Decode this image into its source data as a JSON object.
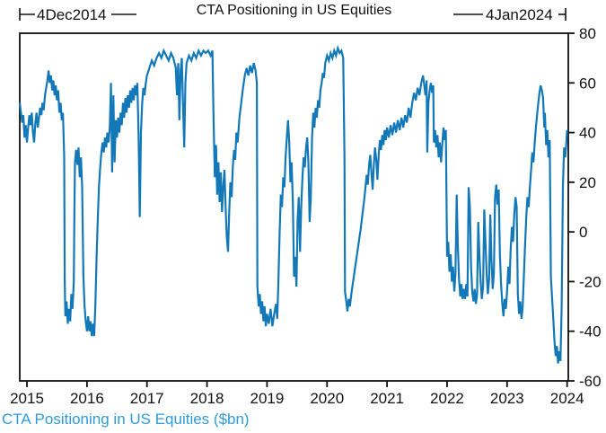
{
  "title": "CTA Positioning in US Equities",
  "annotations": {
    "start_label": "4Dec2014",
    "end_label": "4Jan2024"
  },
  "footer_label": "CTA Positioning in US Equities ($bn)",
  "colors": {
    "line": "#1278b8",
    "footer": "#2e9bdb",
    "axis": "#111111",
    "background": "#ffffff"
  },
  "chart_data": {
    "type": "line",
    "title": "CTA Positioning in US Equities",
    "series_label": "CTA Positioning in US Equities ($bn)",
    "xlabel": "",
    "ylabel": "$bn",
    "y_axis_side": "right",
    "grid": false,
    "xlim": [
      2014.88,
      2024.02
    ],
    "ylim": [
      -60,
      80
    ],
    "x_ticks": [
      2015,
      2016,
      2017,
      2018,
      2019,
      2020,
      2021,
      2022,
      2023,
      2024
    ],
    "y_ticks": [
      80,
      60,
      40,
      20,
      0,
      -20,
      -40,
      -60
    ],
    "range_start": "4Dec2014",
    "range_end": "4Jan2024",
    "points": [
      [
        2014.88,
        52
      ],
      [
        2014.92,
        44
      ],
      [
        2014.94,
        47
      ],
      [
        2014.96,
        38
      ],
      [
        2014.98,
        43
      ],
      [
        2015.0,
        36
      ],
      [
        2015.02,
        42
      ],
      [
        2015.04,
        47
      ],
      [
        2015.06,
        43
      ],
      [
        2015.08,
        48
      ],
      [
        2015.1,
        40
      ],
      [
        2015.12,
        36
      ],
      [
        2015.14,
        44
      ],
      [
        2015.16,
        48
      ],
      [
        2015.18,
        42
      ],
      [
        2015.2,
        46
      ],
      [
        2015.22,
        50
      ],
      [
        2015.24,
        47
      ],
      [
        2015.26,
        52
      ],
      [
        2015.28,
        49
      ],
      [
        2015.3,
        55
      ],
      [
        2015.32,
        58
      ],
      [
        2015.34,
        61
      ],
      [
        2015.36,
        65
      ],
      [
        2015.38,
        60
      ],
      [
        2015.4,
        63
      ],
      [
        2015.42,
        57
      ],
      [
        2015.44,
        61
      ],
      [
        2015.46,
        55
      ],
      [
        2015.48,
        59
      ],
      [
        2015.5,
        53
      ],
      [
        2015.52,
        57
      ],
      [
        2015.54,
        48
      ],
      [
        2015.56,
        52
      ],
      [
        2015.58,
        45
      ],
      [
        2015.6,
        48
      ],
      [
        2015.62,
        30
      ],
      [
        2015.63,
        -20
      ],
      [
        2015.64,
        -34
      ],
      [
        2015.66,
        -28
      ],
      [
        2015.68,
        -37
      ],
      [
        2015.7,
        -31
      ],
      [
        2015.72,
        -36
      ],
      [
        2015.74,
        -25
      ],
      [
        2015.76,
        -31
      ],
      [
        2015.78,
        -20
      ],
      [
        2015.79,
        5
      ],
      [
        2015.8,
        28
      ],
      [
        2015.82,
        33
      ],
      [
        2015.84,
        27
      ],
      [
        2015.86,
        34
      ],
      [
        2015.88,
        22
      ],
      [
        2015.9,
        30
      ],
      [
        2015.92,
        18
      ],
      [
        2015.94,
        -18
      ],
      [
        2015.96,
        -30
      ],
      [
        2015.98,
        -36
      ],
      [
        2016.0,
        -40
      ],
      [
        2016.02,
        -34
      ],
      [
        2016.04,
        -40
      ],
      [
        2016.06,
        -36
      ],
      [
        2016.08,
        -42
      ],
      [
        2016.1,
        -37
      ],
      [
        2016.12,
        -42
      ],
      [
        2016.14,
        -30
      ],
      [
        2016.16,
        -10
      ],
      [
        2016.18,
        5
      ],
      [
        2016.2,
        18
      ],
      [
        2016.22,
        26
      ],
      [
        2016.24,
        32
      ],
      [
        2016.26,
        36
      ],
      [
        2016.28,
        32
      ],
      [
        2016.3,
        38
      ],
      [
        2016.32,
        34
      ],
      [
        2016.34,
        40
      ],
      [
        2016.36,
        36
      ],
      [
        2016.38,
        42
      ],
      [
        2016.4,
        60
      ],
      [
        2016.42,
        24
      ],
      [
        2016.44,
        55
      ],
      [
        2016.46,
        28
      ],
      [
        2016.48,
        45
      ],
      [
        2016.5,
        38
      ],
      [
        2016.52,
        46
      ],
      [
        2016.54,
        40
      ],
      [
        2016.56,
        48
      ],
      [
        2016.58,
        43
      ],
      [
        2016.6,
        52
      ],
      [
        2016.62,
        46
      ],
      [
        2016.64,
        54
      ],
      [
        2016.66,
        48
      ],
      [
        2016.68,
        55
      ],
      [
        2016.7,
        50
      ],
      [
        2016.72,
        57
      ],
      [
        2016.74,
        52
      ],
      [
        2016.76,
        58
      ],
      [
        2016.78,
        53
      ],
      [
        2016.8,
        59
      ],
      [
        2016.82,
        55
      ],
      [
        2016.84,
        60
      ],
      [
        2016.86,
        38
      ],
      [
        2016.88,
        6
      ],
      [
        2016.9,
        40
      ],
      [
        2016.92,
        52
      ],
      [
        2016.94,
        58
      ],
      [
        2016.96,
        55
      ],
      [
        2016.98,
        60
      ],
      [
        2017.0,
        63
      ],
      [
        2017.04,
        66
      ],
      [
        2017.08,
        69
      ],
      [
        2017.12,
        67
      ],
      [
        2017.16,
        70
      ],
      [
        2017.2,
        72
      ],
      [
        2017.24,
        70
      ],
      [
        2017.28,
        73
      ],
      [
        2017.32,
        71
      ],
      [
        2017.36,
        69
      ],
      [
        2017.4,
        72
      ],
      [
        2017.44,
        70
      ],
      [
        2017.48,
        66
      ],
      [
        2017.5,
        55
      ],
      [
        2017.52,
        68
      ],
      [
        2017.54,
        45
      ],
      [
        2017.56,
        65
      ],
      [
        2017.58,
        70
      ],
      [
        2017.6,
        52
      ],
      [
        2017.62,
        34
      ],
      [
        2017.64,
        60
      ],
      [
        2017.66,
        68
      ],
      [
        2017.7,
        71
      ],
      [
        2017.74,
        69
      ],
      [
        2017.78,
        72
      ],
      [
        2017.82,
        70
      ],
      [
        2017.86,
        73
      ],
      [
        2017.9,
        71
      ],
      [
        2017.94,
        73
      ],
      [
        2017.98,
        72
      ],
      [
        2018.02,
        73
      ],
      [
        2018.06,
        71
      ],
      [
        2018.09,
        73
      ],
      [
        2018.11,
        45
      ],
      [
        2018.13,
        22
      ],
      [
        2018.15,
        35
      ],
      [
        2018.17,
        15
      ],
      [
        2018.19,
        28
      ],
      [
        2018.21,
        12
      ],
      [
        2018.23,
        24
      ],
      [
        2018.25,
        8
      ],
      [
        2018.27,
        18
      ],
      [
        2018.29,
        25
      ],
      [
        2018.31,
        10
      ],
      [
        2018.33,
        -2
      ],
      [
        2018.35,
        -8
      ],
      [
        2018.37,
        8
      ],
      [
        2018.39,
        20
      ],
      [
        2018.41,
        14
      ],
      [
        2018.43,
        26
      ],
      [
        2018.45,
        33
      ],
      [
        2018.47,
        29
      ],
      [
        2018.49,
        40
      ],
      [
        2018.51,
        36
      ],
      [
        2018.54,
        46
      ],
      [
        2018.57,
        52
      ],
      [
        2018.6,
        58
      ],
      [
        2018.63,
        63
      ],
      [
        2018.66,
        66
      ],
      [
        2018.69,
        63
      ],
      [
        2018.72,
        67
      ],
      [
        2018.75,
        64
      ],
      [
        2018.78,
        68
      ],
      [
        2018.81,
        65
      ],
      [
        2018.83,
        60
      ],
      [
        2018.84,
        -22
      ],
      [
        2018.86,
        -30
      ],
      [
        2018.88,
        -25
      ],
      [
        2018.9,
        -33
      ],
      [
        2018.92,
        -28
      ],
      [
        2018.94,
        -36
      ],
      [
        2018.96,
        -30
      ],
      [
        2018.98,
        -38
      ],
      [
        2019.0,
        -33
      ],
      [
        2019.03,
        -37
      ],
      [
        2019.06,
        -31
      ],
      [
        2019.09,
        -38
      ],
      [
        2019.12,
        -33
      ],
      [
        2019.15,
        -29
      ],
      [
        2019.17,
        -35
      ],
      [
        2019.19,
        -20
      ],
      [
        2019.21,
        0
      ],
      [
        2019.23,
        15
      ],
      [
        2019.25,
        10
      ],
      [
        2019.27,
        22
      ],
      [
        2019.29,
        18
      ],
      [
        2019.31,
        30
      ],
      [
        2019.33,
        38
      ],
      [
        2019.35,
        45
      ],
      [
        2019.37,
        36
      ],
      [
        2019.39,
        20
      ],
      [
        2019.41,
        28
      ],
      [
        2019.43,
        12
      ],
      [
        2019.45,
        -18
      ],
      [
        2019.47,
        -10
      ],
      [
        2019.49,
        -22
      ],
      [
        2019.51,
        5
      ],
      [
        2019.53,
        14
      ],
      [
        2019.55,
        -8
      ],
      [
        2019.57,
        10
      ],
      [
        2019.59,
        22
      ],
      [
        2019.61,
        30
      ],
      [
        2019.63,
        26
      ],
      [
        2019.65,
        34
      ],
      [
        2019.67,
        38
      ],
      [
        2019.69,
        28
      ],
      [
        2019.71,
        4
      ],
      [
        2019.73,
        14
      ],
      [
        2019.75,
        38
      ],
      [
        2019.77,
        48
      ],
      [
        2019.79,
        42
      ],
      [
        2019.81,
        50
      ],
      [
        2019.83,
        46
      ],
      [
        2019.85,
        53
      ],
      [
        2019.87,
        50
      ],
      [
        2019.89,
        57
      ],
      [
        2019.91,
        60
      ],
      [
        2019.93,
        64
      ],
      [
        2019.95,
        62
      ],
      [
        2019.97,
        68
      ],
      [
        2020.0,
        71
      ],
      [
        2020.03,
        69
      ],
      [
        2020.06,
        72
      ],
      [
        2020.09,
        70
      ],
      [
        2020.12,
        73
      ],
      [
        2020.15,
        71
      ],
      [
        2020.18,
        74
      ],
      [
        2020.21,
        72
      ],
      [
        2020.24,
        73
      ],
      [
        2020.27,
        70
      ],
      [
        2020.29,
        30
      ],
      [
        2020.3,
        -24
      ],
      [
        2020.32,
        -28
      ],
      [
        2020.34,
        -32
      ],
      [
        2020.36,
        -27
      ],
      [
        2020.38,
        -30
      ],
      [
        2020.41,
        -24
      ],
      [
        2020.44,
        -19
      ],
      [
        2020.47,
        -14
      ],
      [
        2020.5,
        -9
      ],
      [
        2020.53,
        -4
      ],
      [
        2020.56,
        1
      ],
      [
        2020.59,
        7
      ],
      [
        2020.62,
        13
      ],
      [
        2020.64,
        18
      ],
      [
        2020.66,
        23
      ],
      [
        2020.68,
        19
      ],
      [
        2020.7,
        27
      ],
      [
        2020.72,
        31
      ],
      [
        2020.74,
        24
      ],
      [
        2020.76,
        17
      ],
      [
        2020.78,
        27
      ],
      [
        2020.8,
        34
      ],
      [
        2020.82,
        29
      ],
      [
        2020.84,
        21
      ],
      [
        2020.86,
        31
      ],
      [
        2020.88,
        37
      ],
      [
        2020.9,
        33
      ],
      [
        2020.92,
        39
      ],
      [
        2020.94,
        35
      ],
      [
        2020.96,
        41
      ],
      [
        2020.98,
        37
      ],
      [
        2021.0,
        42
      ],
      [
        2021.03,
        38
      ],
      [
        2021.06,
        43
      ],
      [
        2021.09,
        39
      ],
      [
        2021.12,
        44
      ],
      [
        2021.15,
        40
      ],
      [
        2021.18,
        45
      ],
      [
        2021.21,
        41
      ],
      [
        2021.24,
        46
      ],
      [
        2021.27,
        42
      ],
      [
        2021.3,
        47
      ],
      [
        2021.33,
        44
      ],
      [
        2021.36,
        50
      ],
      [
        2021.39,
        46
      ],
      [
        2021.42,
        52
      ],
      [
        2021.45,
        56
      ],
      [
        2021.48,
        53
      ],
      [
        2021.51,
        58
      ],
      [
        2021.54,
        55
      ],
      [
        2021.57,
        60
      ],
      [
        2021.6,
        63
      ],
      [
        2021.62,
        59
      ],
      [
        2021.64,
        55
      ],
      [
        2021.66,
        61
      ],
      [
        2021.67,
        32
      ],
      [
        2021.69,
        52
      ],
      [
        2021.71,
        57
      ],
      [
        2021.73,
        60
      ],
      [
        2021.75,
        56
      ],
      [
        2021.77,
        59
      ],
      [
        2021.78,
        36
      ],
      [
        2021.8,
        41
      ],
      [
        2021.82,
        34
      ],
      [
        2021.84,
        39
      ],
      [
        2021.86,
        30
      ],
      [
        2021.88,
        36
      ],
      [
        2021.9,
        28
      ],
      [
        2021.92,
        35
      ],
      [
        2021.94,
        42
      ],
      [
        2021.96,
        37
      ],
      [
        2021.98,
        41
      ],
      [
        2022.0,
        -10
      ],
      [
        2022.02,
        -4
      ],
      [
        2022.04,
        -16
      ],
      [
        2022.06,
        -9
      ],
      [
        2022.08,
        -20
      ],
      [
        2022.1,
        -14
      ],
      [
        2022.12,
        -24
      ],
      [
        2022.14,
        -17
      ],
      [
        2022.16,
        15
      ],
      [
        2022.18,
        -6
      ],
      [
        2022.2,
        -19
      ],
      [
        2022.22,
        -26
      ],
      [
        2022.24,
        -21
      ],
      [
        2022.26,
        -27
      ],
      [
        2022.28,
        -23
      ],
      [
        2022.3,
        -27
      ],
      [
        2022.32,
        -21
      ],
      [
        2022.34,
        -26
      ],
      [
        2022.36,
        18
      ],
      [
        2022.38,
        10
      ],
      [
        2022.4,
        -14
      ],
      [
        2022.42,
        -24
      ],
      [
        2022.44,
        -28
      ],
      [
        2022.46,
        -23
      ],
      [
        2022.48,
        -29
      ],
      [
        2022.5,
        -25
      ],
      [
        2022.52,
        4
      ],
      [
        2022.54,
        -10
      ],
      [
        2022.56,
        -20
      ],
      [
        2022.58,
        -27
      ],
      [
        2022.6,
        -22
      ],
      [
        2022.62,
        9
      ],
      [
        2022.64,
        -4
      ],
      [
        2022.66,
        -17
      ],
      [
        2022.68,
        -25
      ],
      [
        2022.7,
        -19
      ],
      [
        2022.72,
        7
      ],
      [
        2022.74,
        -11
      ],
      [
        2022.76,
        -23
      ],
      [
        2022.78,
        -17
      ],
      [
        2022.8,
        14
      ],
      [
        2022.82,
        19
      ],
      [
        2022.84,
        11
      ],
      [
        2022.86,
        17
      ],
      [
        2022.88,
        -9
      ],
      [
        2022.9,
        -21
      ],
      [
        2022.92,
        -29
      ],
      [
        2022.94,
        -34
      ],
      [
        2022.96,
        -27
      ],
      [
        2022.98,
        -31
      ],
      [
        2023.0,
        -24
      ],
      [
        2023.02,
        -14
      ],
      [
        2023.04,
        -21
      ],
      [
        2023.06,
        -7
      ],
      [
        2023.08,
        2
      ],
      [
        2023.1,
        -4
      ],
      [
        2023.12,
        7
      ],
      [
        2023.14,
        14
      ],
      [
        2023.16,
        10
      ],
      [
        2023.18,
        -25
      ],
      [
        2023.2,
        -33
      ],
      [
        2023.22,
        -28
      ],
      [
        2023.24,
        -35
      ],
      [
        2023.26,
        -30
      ],
      [
        2023.28,
        -18
      ],
      [
        2023.3,
        -5
      ],
      [
        2023.32,
        6
      ],
      [
        2023.34,
        14
      ],
      [
        2023.36,
        10
      ],
      [
        2023.38,
        18
      ],
      [
        2023.4,
        25
      ],
      [
        2023.42,
        32
      ],
      [
        2023.44,
        28
      ],
      [
        2023.46,
        36
      ],
      [
        2023.48,
        42
      ],
      [
        2023.5,
        47
      ],
      [
        2023.52,
        52
      ],
      [
        2023.54,
        56
      ],
      [
        2023.56,
        59
      ],
      [
        2023.58,
        57
      ],
      [
        2023.6,
        54
      ],
      [
        2023.62,
        42
      ],
      [
        2023.63,
        48
      ],
      [
        2023.65,
        35
      ],
      [
        2023.67,
        41
      ],
      [
        2023.69,
        30
      ],
      [
        2023.71,
        37
      ],
      [
        2023.73,
        -18
      ],
      [
        2023.75,
        -27
      ],
      [
        2023.77,
        -35
      ],
      [
        2023.79,
        -44
      ],
      [
        2023.81,
        -50
      ],
      [
        2023.83,
        -46
      ],
      [
        2023.85,
        -53
      ],
      [
        2023.87,
        -48
      ],
      [
        2023.89,
        -52
      ],
      [
        2023.91,
        -30
      ],
      [
        2023.93,
        18
      ],
      [
        2023.95,
        34
      ],
      [
        2023.97,
        30
      ],
      [
        2024.0,
        41
      ]
    ]
  }
}
